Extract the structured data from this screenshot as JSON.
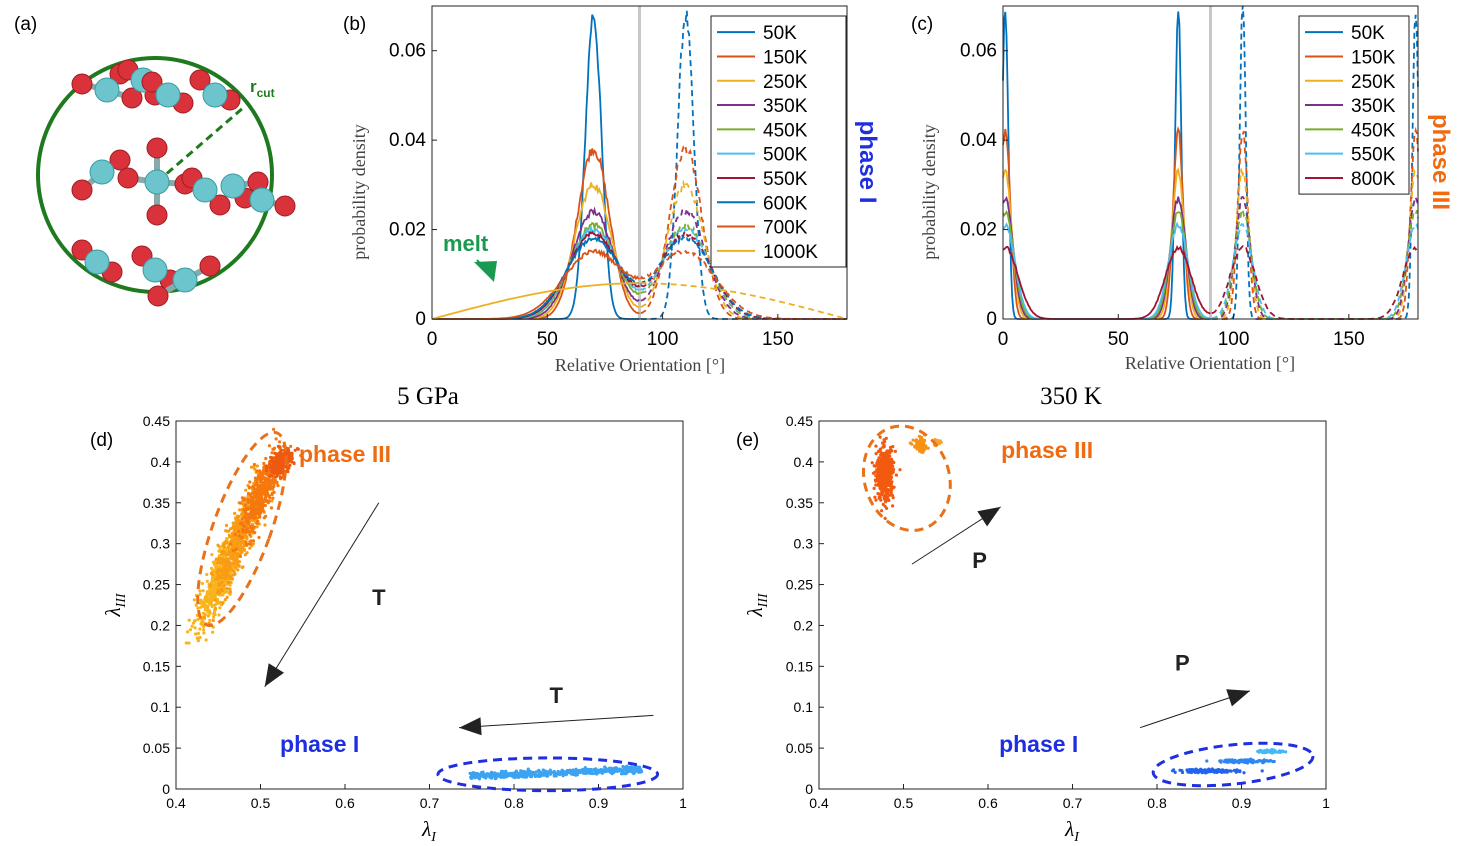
{
  "chart_data": [
    {
      "panel": "(a)",
      "type": "other",
      "annotation_main": "r",
      "annotation_sub": "cut"
    },
    {
      "panel": "(b)",
      "type": "line",
      "xlabel": "Relative Orientation [°]",
      "ylabel": "probability density",
      "xlim": [
        0,
        180
      ],
      "ylim": [
        0,
        0.07
      ],
      "xticks": [
        "0",
        "50",
        "100",
        "150"
      ],
      "yticks": [
        "0",
        "0.02",
        "0.04",
        "0.06"
      ],
      "side_label": "phase I",
      "side_label_color": "#1f2fe0",
      "melt_label": "melt",
      "melt_color": "#1a9a50",
      "vline": 90,
      "peaks": [
        70,
        110
      ],
      "series": [
        {
          "name": "50K",
          "color": "#0072BD",
          "peak": 0.068,
          "width": 3.5
        },
        {
          "name": "150K",
          "color": "#D95319",
          "peak": 0.038,
          "width": 7
        },
        {
          "name": "250K",
          "color": "#EDB120",
          "peak": 0.03,
          "width": 8
        },
        {
          "name": "350K",
          "color": "#7E2F8E",
          "peak": 0.024,
          "width": 9
        },
        {
          "name": "450K",
          "color": "#77AC30",
          "peak": 0.021,
          "width": 10
        },
        {
          "name": "500K",
          "color": "#4DBEEE",
          "peak": 0.02,
          "width": 10.5
        },
        {
          "name": "550K",
          "color": "#A2142F",
          "peak": 0.019,
          "width": 11
        },
        {
          "name": "600K",
          "color": "#0072BD",
          "peak": 0.018,
          "width": 11.5
        },
        {
          "name": "700K",
          "color": "#D95319",
          "peak": 0.015,
          "width": 13
        },
        {
          "name": "1000K",
          "color": "#EDB120",
          "peak": 0.008,
          "width": 0
        }
      ]
    },
    {
      "panel": "(c)",
      "type": "line",
      "xlabel": "Relative Orientation [°]",
      "ylabel": "probability density",
      "xlim": [
        0,
        180
      ],
      "ylim": [
        0,
        0.07
      ],
      "xticks": [
        "0",
        "50",
        "100",
        "150"
      ],
      "yticks": [
        "0",
        "0.02",
        "0.04",
        "0.06"
      ],
      "side_label": "phase III",
      "side_label_color": "#f06a10",
      "vline": 90,
      "peaks": [
        1,
        76,
        104,
        179
      ],
      "series": [
        {
          "name": "50K",
          "color": "#0072BD",
          "peak": 0.07,
          "width": 1.3
        },
        {
          "name": "150K",
          "color": "#D95319",
          "peak": 0.042,
          "width": 2.2
        },
        {
          "name": "250K",
          "color": "#EDB120",
          "peak": 0.033,
          "width": 2.8
        },
        {
          "name": "350K",
          "color": "#7E2F8E",
          "peak": 0.027,
          "width": 3.3
        },
        {
          "name": "450K",
          "color": "#77AC30",
          "peak": 0.024,
          "width": 3.7
        },
        {
          "name": "550K",
          "color": "#4DBEEE",
          "peak": 0.021,
          "width": 4.2
        },
        {
          "name": "800K",
          "color": "#A2142F",
          "peak": 0.016,
          "width": 5.5
        }
      ]
    },
    {
      "panel": "(d)",
      "type": "scatter",
      "title": "5 GPa",
      "xlabel": "λI",
      "ylabel": "λIII",
      "xlim": [
        0.4,
        1
      ],
      "ylim": [
        0,
        0.45
      ],
      "xticks": [
        "0.4",
        "0.5",
        "0.6",
        "0.7",
        "0.8",
        "0.9",
        "1"
      ],
      "yticks": [
        "0",
        "0.05",
        "0.1",
        "0.15",
        "0.2",
        "0.25",
        "0.3",
        "0.35",
        "0.4",
        "0.45"
      ],
      "label_phase3": "phase III",
      "label_phase1": "phase I",
      "arrow_label_1": "T",
      "arrow_label_2": "T",
      "ellipse_phase3": {
        "cx": 0.478,
        "cy": 0.318,
        "rx": 0.034,
        "ry": 0.125,
        "angle": 20
      },
      "ellipse_phase1": {
        "cx": 0.84,
        "cy": 0.018,
        "rx": 0.13,
        "ry": 0.02,
        "angle": 0
      },
      "arrow_1": {
        "x1": 0.64,
        "y1": 0.35,
        "x2": 0.505,
        "y2": 0.125,
        "head": false
      },
      "arrow_2": {
        "x1": 0.965,
        "y1": 0.09,
        "x2": 0.735,
        "y2": 0.075,
        "head": true
      },
      "arrow_1_tip": {
        "x1": 0.53,
        "y1": 0.16,
        "x2": 0.51,
        "y2": 0.125
      },
      "label_positions": {
        "phase3": [
          0.6,
          0.4
        ],
        "phase1": [
          0.57,
          0.045
        ],
        "t1": [
          0.64,
          0.225
        ],
        "t2": [
          0.85,
          0.105
        ]
      },
      "clusters": [
        {
          "cx": 0.45,
          "cy": 0.255,
          "sx": 0.012,
          "sy": 0.03,
          "color": "#f9b31c",
          "n": 450
        },
        {
          "cx": 0.475,
          "cy": 0.31,
          "sx": 0.012,
          "sy": 0.035,
          "color": "#f99b14",
          "n": 500
        },
        {
          "cx": 0.5,
          "cy": 0.36,
          "sx": 0.012,
          "sy": 0.025,
          "color": "#f5780f",
          "n": 450
        },
        {
          "cx": 0.525,
          "cy": 0.4,
          "sx": 0.01,
          "sy": 0.008,
          "color": "#ee5910",
          "n": 250
        },
        {
          "cx": 0.85,
          "cy": 0.02,
          "sx": 0.06,
          "sy": 0.002,
          "color": "#3ba3f2",
          "n": 500,
          "slope": 0.04
        }
      ]
    },
    {
      "panel": "(e)",
      "type": "scatter",
      "title": "350 K",
      "xlabel": "λI",
      "ylabel": "λIII",
      "xlim": [
        0.4,
        1
      ],
      "ylim": [
        0,
        0.45
      ],
      "xticks": [
        "0.4",
        "0.5",
        "0.6",
        "0.7",
        "0.8",
        "0.9",
        "1"
      ],
      "yticks": [
        "0",
        "0.05",
        "0.1",
        "0.15",
        "0.2",
        "0.25",
        "0.3",
        "0.35",
        "0.4",
        "0.45"
      ],
      "label_phase3": "phase III",
      "label_phase1": "phase I",
      "arrow_label_1": "P",
      "arrow_label_2": "P",
      "ellipse_phase3": {
        "cx": 0.504,
        "cy": 0.38,
        "rx": 0.05,
        "ry": 0.065,
        "angle": -18
      },
      "ellipse_phase1": {
        "cx": 0.89,
        "cy": 0.03,
        "rx": 0.095,
        "ry": 0.024,
        "angle": -6
      },
      "arrow_1": {
        "x1": 0.51,
        "y1": 0.275,
        "x2": 0.615,
        "y2": 0.345,
        "head": true
      },
      "arrow_2": {
        "x1": 0.78,
        "y1": 0.075,
        "x2": 0.91,
        "y2": 0.12,
        "head": true
      },
      "label_positions": {
        "phase3": [
          0.67,
          0.405
        ],
        "phase1": [
          0.66,
          0.045
        ],
        "t1": [
          0.59,
          0.27
        ],
        "t2": [
          0.83,
          0.145
        ]
      },
      "clusters": [
        {
          "cx": 0.478,
          "cy": 0.385,
          "sx": 0.005,
          "sy": 0.016,
          "color": "#f25a10",
          "n": 450
        },
        {
          "cx": 0.52,
          "cy": 0.42,
          "sx": 0.004,
          "sy": 0.004,
          "color": "#f79214",
          "n": 80
        },
        {
          "cx": 0.54,
          "cy": 0.424,
          "sx": 0.003,
          "sy": 0.002,
          "color": "#f7a530",
          "n": 30
        },
        {
          "cx": 0.86,
          "cy": 0.022,
          "sx": 0.018,
          "sy": 0.001,
          "color": "#2064f0",
          "n": 140
        },
        {
          "cx": 0.905,
          "cy": 0.034,
          "sx": 0.015,
          "sy": 0.001,
          "color": "#2d86f4",
          "n": 100
        },
        {
          "cx": 0.935,
          "cy": 0.046,
          "sx": 0.008,
          "sy": 0.001,
          "color": "#44b8f7",
          "n": 60
        }
      ]
    }
  ]
}
